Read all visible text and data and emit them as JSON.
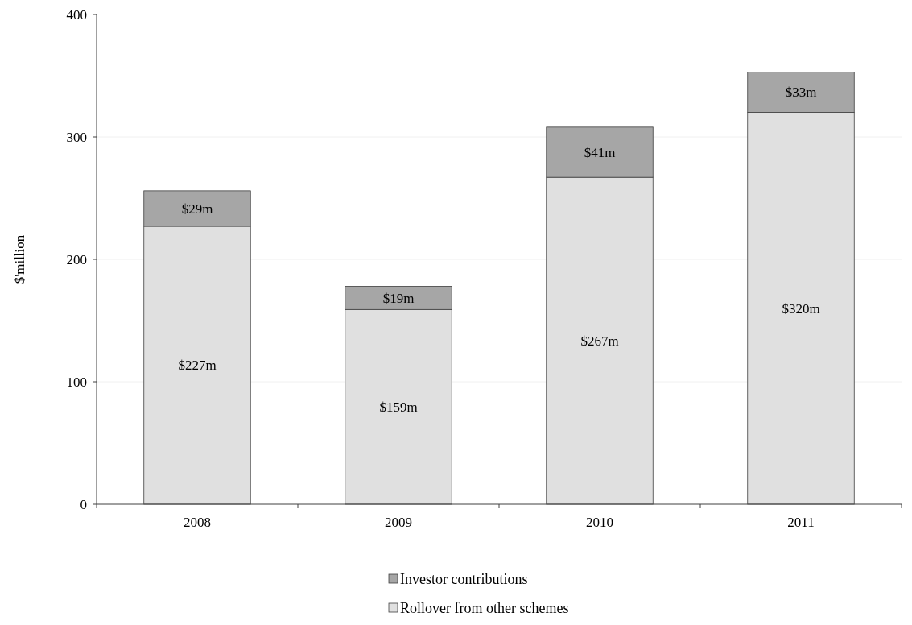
{
  "chart_data": {
    "type": "bar",
    "stacked": true,
    "ylabel": "$'million",
    "categories": [
      "2008",
      "2009",
      "2010",
      "2011"
    ],
    "series": [
      {
        "name": "Rollover from other schemes",
        "color": "#e0e0e0",
        "values": [
          227,
          159,
          267,
          320
        ],
        "value_labels": [
          "$227m",
          "$159m",
          "$267m",
          "$320m"
        ]
      },
      {
        "name": "Investor contributions",
        "color": "#a6a6a6",
        "values": [
          29,
          19,
          41,
          33
        ],
        "value_labels": [
          "$29m",
          "$19m",
          "$41m",
          "$33m"
        ]
      }
    ],
    "ylim": [
      0,
      400
    ],
    "yticks": [
      0,
      100,
      200,
      300,
      400
    ],
    "grid": "y",
    "legend": "bottom"
  }
}
